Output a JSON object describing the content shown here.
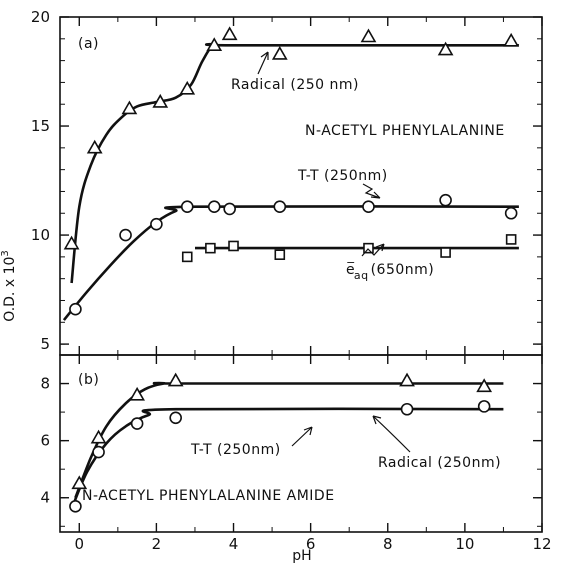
{
  "chart_data": [
    {
      "panel": "(a)",
      "type": "scatter",
      "title": "N-ACETYL PHENYLALANINE",
      "xlabel": "pH",
      "ylabel": "O.D. x 10³",
      "xlim": [
        -0.5,
        12
      ],
      "ylim": [
        4.5,
        20
      ],
      "x_ticks": [
        "0",
        "2",
        "4",
        "6",
        "8",
        "10",
        "12"
      ],
      "y_ticks": [
        "5",
        "10",
        "15",
        "20"
      ],
      "grid": false,
      "series": [
        {
          "name": "Radical (250 nm)",
          "marker": "triangle",
          "points": [
            [
              -0.2,
              9.6
            ],
            [
              0.4,
              14.0
            ],
            [
              1.3,
              15.8
            ],
            [
              2.1,
              16.1
            ],
            [
              2.8,
              16.7
            ],
            [
              3.5,
              18.7
            ],
            [
              3.9,
              19.2
            ],
            [
              5.2,
              18.3
            ],
            [
              7.5,
              19.1
            ],
            [
              9.5,
              18.5
            ],
            [
              11.2,
              18.9
            ]
          ],
          "curve": [
            [
              -0.2,
              7.8
            ],
            [
              0.0,
              11.3
            ],
            [
              0.3,
              13.2
            ],
            [
              0.7,
              14.6
            ],
            [
              1.1,
              15.4
            ],
            [
              1.5,
              15.9
            ],
            [
              2.0,
              16.1
            ],
            [
              2.5,
              16.3
            ],
            [
              2.9,
              16.9
            ],
            [
              3.2,
              18.0
            ],
            [
              3.5,
              18.7
            ],
            [
              4.0,
              18.7
            ],
            [
              11.4,
              18.7
            ]
          ]
        },
        {
          "name": "T-T (250nm)",
          "marker": "circle",
          "points": [
            [
              -0.1,
              6.6
            ],
            [
              1.2,
              10.0
            ],
            [
              2.0,
              10.5
            ],
            [
              2.8,
              11.3
            ],
            [
              3.5,
              11.3
            ],
            [
              3.9,
              11.2
            ],
            [
              5.2,
              11.3
            ],
            [
              7.5,
              11.3
            ],
            [
              9.5,
              11.6
            ],
            [
              11.2,
              11.0
            ]
          ],
          "curve": [
            [
              -0.4,
              6.1
            ],
            [
              0.2,
              7.4
            ],
            [
              0.8,
              8.6
            ],
            [
              1.4,
              9.7
            ],
            [
              2.0,
              10.6
            ],
            [
              2.5,
              11.1
            ],
            [
              3.0,
              11.3
            ],
            [
              11.4,
              11.3
            ]
          ]
        },
        {
          "name": "e⁻ aq (650nm)",
          "marker": "square",
          "points": [
            [
              2.8,
              9.0
            ],
            [
              3.4,
              9.4
            ],
            [
              4.0,
              9.5
            ],
            [
              5.2,
              9.1
            ],
            [
              7.5,
              9.4
            ],
            [
              9.5,
              9.2
            ],
            [
              11.2,
              9.8
            ]
          ],
          "curve": [
            [
              3.0,
              9.4
            ],
            [
              11.4,
              9.4
            ]
          ]
        }
      ],
      "annotations": [
        "Radical (250 nm)",
        "T-T (250nm)",
        "e",
        "aq",
        "(650nm)"
      ]
    },
    {
      "panel": "(b)",
      "type": "scatter",
      "title": "N-ACETYL PHENYLALANINE AMIDE",
      "xlabel": "pH",
      "ylabel": "O.D. x 10³",
      "xlim": [
        -0.5,
        12
      ],
      "ylim": [
        2.8,
        9
      ],
      "x_ticks": [
        "0",
        "2",
        "4",
        "6",
        "8",
        "10",
        "12"
      ],
      "y_ticks": [
        "4",
        "6",
        "8"
      ],
      "grid": false,
      "series": [
        {
          "name": "Radical (250nm)",
          "marker": "triangle",
          "points": [
            [
              0.0,
              4.5
            ],
            [
              0.5,
              6.1
            ],
            [
              1.5,
              7.6
            ],
            [
              2.5,
              8.1
            ],
            [
              8.5,
              8.1
            ],
            [
              10.5,
              7.9
            ]
          ],
          "curve": [
            [
              -0.1,
              4.0
            ],
            [
              0.3,
              5.4
            ],
            [
              0.7,
              6.5
            ],
            [
              1.2,
              7.3
            ],
            [
              1.7,
              7.8
            ],
            [
              2.2,
              8.0
            ],
            [
              2.7,
              8.0
            ],
            [
              11.0,
              8.0
            ]
          ]
        },
        {
          "name": "T-T (250nm)",
          "marker": "circle",
          "points": [
            [
              -0.1,
              3.7
            ],
            [
              0.5,
              5.6
            ],
            [
              1.5,
              6.6
            ],
            [
              2.5,
              6.8
            ],
            [
              8.5,
              7.1
            ],
            [
              10.5,
              7.2
            ]
          ],
          "curve": [
            [
              -0.2,
              3.6
            ],
            [
              0.2,
              4.9
            ],
            [
              0.7,
              5.9
            ],
            [
              1.2,
              6.5
            ],
            [
              1.8,
              6.9
            ],
            [
              2.5,
              7.1
            ],
            [
              11.0,
              7.1
            ]
          ]
        }
      ],
      "annotations": [
        "T-T (250nm)",
        "Radical (250nm)"
      ]
    }
  ],
  "labels": {
    "panel_a": "(a)",
    "panel_b": "(b)",
    "title_a": "N-ACETYL PHENYLALANINE",
    "title_b": "N-ACETYL PHENYLALANINE AMIDE",
    "ylabel": "O.D. x 10",
    "ylabel_sup": "3",
    "xlabel": "pH",
    "a_radical": "Radical (250 nm)",
    "a_tt": "T-T (250nm)",
    "a_eaq_e": "e",
    "a_eaq_minus": "−",
    "a_eaq_sub": "aq",
    "a_eaq_rest": "(650nm)",
    "b_tt": "T-T (250nm)",
    "b_radical": "Radical (250nm)"
  }
}
